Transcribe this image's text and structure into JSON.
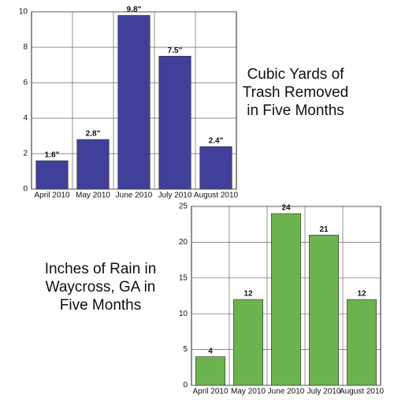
{
  "chart_data": [
    {
      "type": "bar",
      "title": "Cubic Yards of Trash Removed in Five Months",
      "categories": [
        "April 2010",
        "May 2010",
        "June 2010",
        "July 2010",
        "August 2010"
      ],
      "values": [
        1.6,
        2.8,
        9.8,
        7.5,
        2.4
      ],
      "value_labels": [
        "1.6\"",
        "2.8\"",
        "9.8\"",
        "7.5\"",
        "2.4\""
      ],
      "color": "#40409a",
      "ylim": [
        0,
        10
      ],
      "yticks": [
        0,
        2,
        4,
        6,
        8,
        10
      ],
      "grid": true
    },
    {
      "type": "bar",
      "title": "Inches of Rain in Waycross, GA in Five Months",
      "categories": [
        "April 2010",
        "May 2010",
        "June 2010",
        "July 2010",
        "August 2010"
      ],
      "values": [
        4,
        12,
        24,
        21,
        12
      ],
      "color": "#6cb34e",
      "ylim": [
        0,
        25
      ],
      "yticks": [
        0,
        5,
        10,
        15,
        20,
        25
      ],
      "grid": true
    }
  ]
}
